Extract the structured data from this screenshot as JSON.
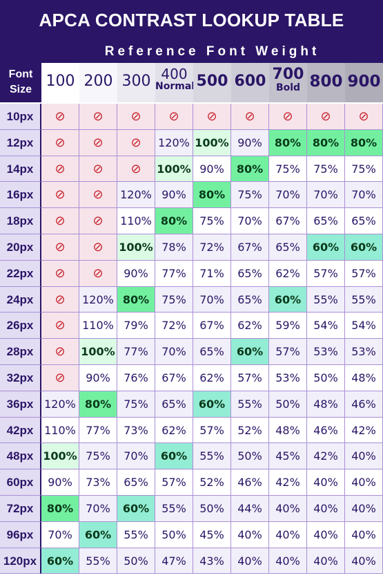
{
  "header": {
    "title": "APCA CONTRAST LOOKUP TABLE",
    "subtitle": "Reference Font Weight",
    "corner_line1": "Font",
    "corner_line2": "Size"
  },
  "chart_data": {
    "type": "table",
    "title": "APCA CONTRAST LOOKUP TABLE",
    "column_header": "Reference Font Weight",
    "row_header": "Font Size",
    "weights": [
      {
        "label": "100",
        "sub": ""
      },
      {
        "label": "200",
        "sub": ""
      },
      {
        "label": "300",
        "sub": ""
      },
      {
        "label": "400",
        "sub": "Normal"
      },
      {
        "label": "500",
        "sub": ""
      },
      {
        "label": "600",
        "sub": ""
      },
      {
        "label": "700",
        "sub": "Bold"
      },
      {
        "label": "800",
        "sub": ""
      },
      {
        "label": "900",
        "sub": ""
      }
    ],
    "sizes": [
      "10px",
      "12px",
      "14px",
      "16px",
      "18px",
      "20px",
      "22px",
      "24px",
      "26px",
      "28px",
      "32px",
      "36px",
      "42px",
      "48px",
      "60px",
      "72px",
      "96px",
      "120px"
    ],
    "not_allowed_symbol": "⊘",
    "values": [
      [
        "⊘",
        "⊘",
        "⊘",
        "⊘",
        "⊘",
        "⊘",
        "⊘",
        "⊘",
        "⊘"
      ],
      [
        "⊘",
        "⊘",
        "⊘",
        "120%",
        "100%",
        "90%",
        "80%",
        "80%",
        "80%"
      ],
      [
        "⊘",
        "⊘",
        "⊘",
        "100%",
        "90%",
        "80%",
        "75%",
        "75%",
        "75%"
      ],
      [
        "⊘",
        "⊘",
        "120%",
        "90%",
        "80%",
        "75%",
        "70%",
        "70%",
        "70%"
      ],
      [
        "⊘",
        "⊘",
        "110%",
        "80%",
        "75%",
        "70%",
        "67%",
        "65%",
        "65%"
      ],
      [
        "⊘",
        "⊘",
        "100%",
        "78%",
        "72%",
        "67%",
        "65%",
        "60%",
        "60%"
      ],
      [
        "⊘",
        "⊘",
        "90%",
        "77%",
        "71%",
        "65%",
        "62%",
        "57%",
        "57%"
      ],
      [
        "⊘",
        "120%",
        "80%",
        "75%",
        "70%",
        "65%",
        "60%",
        "55%",
        "55%"
      ],
      [
        "⊘",
        "110%",
        "79%",
        "72%",
        "67%",
        "62%",
        "59%",
        "54%",
        "54%"
      ],
      [
        "⊘",
        "100%",
        "77%",
        "70%",
        "65%",
        "60%",
        "57%",
        "53%",
        "53%"
      ],
      [
        "⊘",
        "90%",
        "76%",
        "67%",
        "62%",
        "57%",
        "53%",
        "50%",
        "48%"
      ],
      [
        "120%",
        "80%",
        "75%",
        "65%",
        "60%",
        "55%",
        "50%",
        "48%",
        "46%"
      ],
      [
        "110%",
        "77%",
        "73%",
        "62%",
        "57%",
        "52%",
        "48%",
        "46%",
        "42%"
      ],
      [
        "100%",
        "75%",
        "70%",
        "60%",
        "55%",
        "50%",
        "45%",
        "42%",
        "40%"
      ],
      [
        "90%",
        "73%",
        "65%",
        "57%",
        "52%",
        "46%",
        "42%",
        "40%",
        "40%"
      ],
      [
        "80%",
        "70%",
        "60%",
        "55%",
        "50%",
        "44%",
        "40%",
        "40%",
        "40%"
      ],
      [
        "70%",
        "60%",
        "55%",
        "50%",
        "45%",
        "40%",
        "40%",
        "40%",
        "40%"
      ],
      [
        "60%",
        "55%",
        "50%",
        "47%",
        "43%",
        "40%",
        "40%",
        "40%",
        "40%"
      ]
    ],
    "highlights": [
      [
        1,
        4,
        "light"
      ],
      [
        1,
        6,
        "mid"
      ],
      [
        1,
        7,
        "mid"
      ],
      [
        1,
        8,
        "mid"
      ],
      [
        2,
        3,
        "light"
      ],
      [
        2,
        5,
        "mid"
      ],
      [
        3,
        4,
        "mid"
      ],
      [
        4,
        3,
        "mid"
      ],
      [
        5,
        2,
        "light"
      ],
      [
        5,
        7,
        "teal"
      ],
      [
        5,
        8,
        "teal"
      ],
      [
        7,
        2,
        "mid"
      ],
      [
        7,
        6,
        "teal"
      ],
      [
        9,
        1,
        "light"
      ],
      [
        9,
        5,
        "teal"
      ],
      [
        11,
        1,
        "mid"
      ],
      [
        11,
        4,
        "teal"
      ],
      [
        13,
        0,
        "light"
      ],
      [
        13,
        3,
        "teal"
      ],
      [
        15,
        0,
        "mid"
      ],
      [
        15,
        2,
        "teal"
      ],
      [
        16,
        1,
        "teal"
      ],
      [
        17,
        0,
        "teal"
      ]
    ]
  },
  "colors": {
    "title_band": "#2a1566",
    "text": "#2a1566",
    "not_allowed": "#c9212b",
    "not_allowed_bg": "#f6e4ea",
    "highlight_light": "#dcfbe5",
    "highlight_mid": "#72f0a0",
    "highlight_teal": "#93ecd4"
  }
}
